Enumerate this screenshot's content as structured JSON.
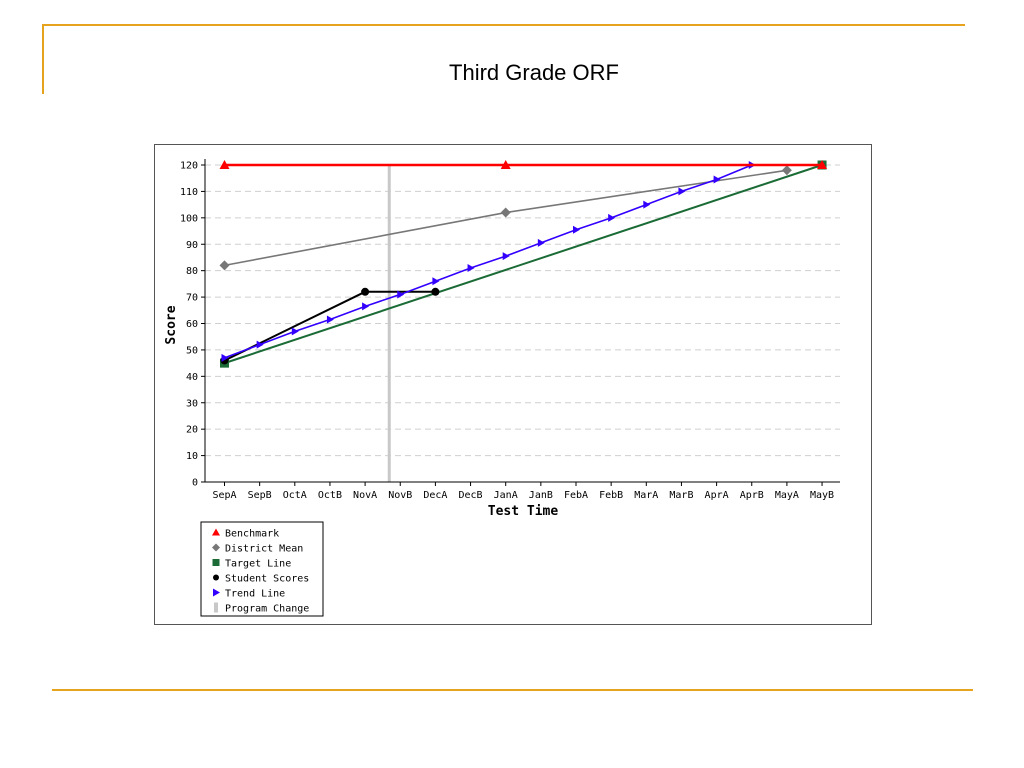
{
  "slide": {
    "title": "Third Grade ORF",
    "accent_color": "#e6a31e"
  },
  "chart_data": {
    "type": "line",
    "title": "",
    "xlabel": "Test Time",
    "ylabel": "Score",
    "categories": [
      "SepA",
      "SepB",
      "OctA",
      "OctB",
      "NovA",
      "NovB",
      "DecA",
      "DecB",
      "JanA",
      "JanB",
      "FebA",
      "FebB",
      "MarA",
      "MarB",
      "AprA",
      "AprB",
      "MayA",
      "MayB"
    ],
    "ylim": [
      0,
      120
    ],
    "yticks": [
      0,
      10,
      20,
      30,
      40,
      50,
      60,
      70,
      80,
      90,
      100,
      110,
      120
    ],
    "grid": "horizontal dashed",
    "legend_position": "bottom-left",
    "series": [
      {
        "name": "Benchmark",
        "color": "#ff0000",
        "marker": "triangle",
        "points": [
          [
            "SepA",
            120
          ],
          [
            "JanA",
            120
          ],
          [
            "MayB",
            120
          ]
        ]
      },
      {
        "name": "District Mean",
        "color": "#777777",
        "marker": "diamond",
        "points": [
          [
            "SepA",
            82
          ],
          [
            "JanA",
            102
          ],
          [
            "MayA",
            118
          ]
        ]
      },
      {
        "name": "Target Line",
        "color": "#1a6b35",
        "marker": "square",
        "points": [
          [
            "SepA",
            45
          ],
          [
            "MayB",
            120
          ]
        ]
      },
      {
        "name": "Student Scores",
        "color": "#000000",
        "marker": "circle",
        "points": [
          [
            "SepA",
            46
          ],
          [
            "NovA",
            72
          ],
          [
            "DecA",
            72
          ]
        ]
      },
      {
        "name": "Trend Line",
        "color": "#3300ff",
        "marker": "arrow",
        "points": [
          [
            "SepA",
            47
          ],
          [
            "SepB",
            52
          ],
          [
            "OctA",
            57
          ],
          [
            "OctB",
            61.5
          ],
          [
            "NovA",
            66.5
          ],
          [
            "NovB",
            71
          ],
          [
            "DecA",
            76
          ],
          [
            "DecB",
            81
          ],
          [
            "JanA",
            85.5
          ],
          [
            "JanB",
            90.5
          ],
          [
            "FebA",
            95.5
          ],
          [
            "FebB",
            100
          ],
          [
            "MarA",
            105
          ],
          [
            "MarB",
            110
          ],
          [
            "AprA",
            114.5
          ],
          [
            "AprB",
            120
          ]
        ]
      },
      {
        "name": "Program Change",
        "color": "#c8c8c8",
        "marker": "bar",
        "points": [
          [
            "NovB",
            null
          ]
        ]
      }
    ],
    "program_change_category": "NovB"
  }
}
